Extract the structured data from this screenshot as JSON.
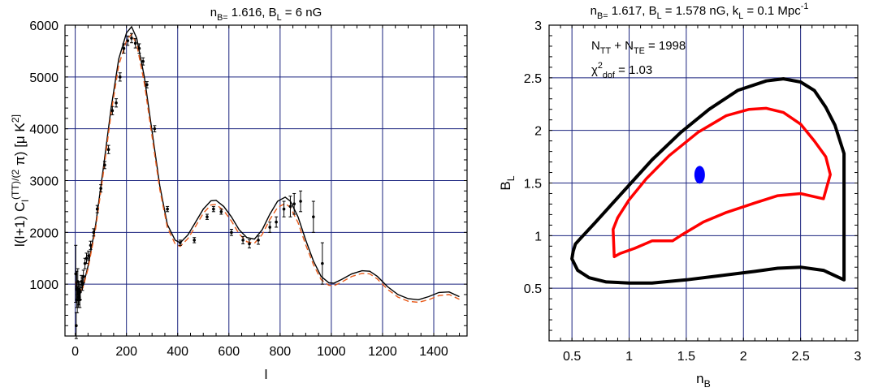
{
  "chart_data": [
    {
      "type": "line",
      "title": "n_B= 1.616,  B_L = 6 nG",
      "xlabel": "l",
      "ylabel": "l(l+1) C_l^(TT)/(2 π) [μ K^2]",
      "xlim": [
        -40,
        1530
      ],
      "ylim": [
        0,
        6000
      ],
      "xticks": [
        0,
        200,
        400,
        600,
        800,
        1000,
        1200,
        1400
      ],
      "yticks": [
        1000,
        2000,
        3000,
        4000,
        5000,
        6000
      ],
      "grid": true,
      "series": [
        {
          "style": "solid",
          "color": "#000000",
          "x": [
            2,
            10,
            20,
            30,
            50,
            80,
            110,
            140,
            170,
            200,
            220,
            240,
            270,
            300,
            330,
            360,
            390,
            410,
            440,
            470,
            500,
            530,
            550,
            580,
            610,
            640,
            670,
            700,
            730,
            760,
            790,
            820,
            840,
            870,
            900,
            930,
            960,
            990,
            1010,
            1040,
            1080,
            1120,
            1150,
            1180,
            1220,
            1260,
            1300,
            1340,
            1380,
            1420,
            1460,
            1500
          ],
          "y": [
            1050,
            800,
            850,
            950,
            1350,
            2150,
            3250,
            4400,
            5350,
            5850,
            5970,
            5750,
            5000,
            3950,
            2900,
            2150,
            1850,
            1800,
            1950,
            2200,
            2450,
            2610,
            2620,
            2500,
            2300,
            2050,
            1900,
            1870,
            2050,
            2350,
            2600,
            2680,
            2600,
            2300,
            1850,
            1450,
            1150,
            1030,
            1020,
            1090,
            1200,
            1260,
            1250,
            1150,
            950,
            800,
            720,
            700,
            760,
            840,
            850,
            760
          ]
        },
        {
          "style": "dashed",
          "color": "#e85a1a",
          "x": [
            2,
            10,
            20,
            30,
            50,
            80,
            110,
            140,
            170,
            200,
            220,
            240,
            270,
            300,
            330,
            360,
            390,
            410,
            440,
            470,
            500,
            530,
            550,
            580,
            610,
            640,
            670,
            700,
            730,
            760,
            790,
            820,
            840,
            870,
            900,
            930,
            960,
            990,
            1010,
            1040,
            1080,
            1120,
            1150,
            1180,
            1220,
            1260,
            1300,
            1340,
            1380,
            1420,
            1460,
            1500
          ],
          "y": [
            1050,
            800,
            850,
            930,
            1300,
            2080,
            3150,
            4300,
            5230,
            5700,
            5830,
            5630,
            4880,
            3850,
            2830,
            2090,
            1780,
            1730,
            1880,
            2120,
            2370,
            2530,
            2540,
            2420,
            2220,
            1970,
            1820,
            1790,
            1960,
            2250,
            2480,
            2560,
            2480,
            2190,
            1760,
            1380,
            1090,
            980,
            970,
            1040,
            1150,
            1210,
            1200,
            1100,
            900,
            750,
            670,
            650,
            700,
            780,
            800,
            710
          ]
        },
        {
          "style": "errorbar",
          "color": "#000000",
          "x": [
            2,
            4,
            6,
            8,
            10,
            12,
            14,
            16,
            18,
            20,
            24,
            28,
            32,
            38,
            44,
            52,
            60,
            72,
            86,
            100,
            115,
            130,
            145,
            160,
            175,
            190,
            205,
            220,
            235,
            250,
            265,
            280,
            310,
            360,
            410,
            465,
            515,
            540,
            570,
            610,
            655,
            680,
            715,
            760,
            785,
            815,
            840,
            855,
            880,
            930,
            965
          ],
          "y": [
            1200,
            200,
            900,
            700,
            1050,
            800,
            750,
            900,
            700,
            850,
            1050,
            1000,
            1150,
            1400,
            1500,
            1550,
            1750,
            2000,
            2450,
            2850,
            3300,
            3600,
            4350,
            4500,
            5000,
            5550,
            5700,
            5750,
            5650,
            5550,
            5300,
            4850,
            4000,
            2450,
            1800,
            1850,
            2300,
            2450,
            2400,
            2000,
            1850,
            1780,
            1850,
            2100,
            2200,
            2450,
            2500,
            2550,
            2600,
            2300,
            1400
          ],
          "err": [
            550,
            250,
            350,
            250,
            250,
            250,
            150,
            150,
            150,
            150,
            120,
            120,
            120,
            100,
            100,
            90,
            80,
            70,
            70,
            70,
            70,
            80,
            80,
            80,
            80,
            90,
            90,
            90,
            90,
            90,
            70,
            60,
            60,
            50,
            50,
            50,
            50,
            50,
            50,
            60,
            70,
            80,
            80,
            100,
            100,
            150,
            200,
            200,
            200,
            300,
            400
          ]
        }
      ]
    },
    {
      "type": "contour",
      "title": "n_B= 1.617,   B_L = 1.578 nG,   k_L = 0.1 Mpc^-1",
      "xlabel": "n_B",
      "ylabel": "B_L",
      "xlim": [
        0.3,
        3.0
      ],
      "ylim": [
        0,
        3
      ],
      "xticks": [
        0.5,
        1,
        1.5,
        2,
        2.5,
        3
      ],
      "xticklabels": [
        "0.5",
        "1",
        "1.5",
        "2",
        "2.5",
        "3"
      ],
      "yticks": [
        0.5,
        1,
        1.5,
        2,
        2.5,
        3
      ],
      "yticklabels": [
        "0.5",
        "1",
        "1.5",
        "2",
        "2.5",
        "3"
      ],
      "grid": true,
      "annotation_lines": [
        "N_TT + N_TE = 1998",
        "χ^2_dof = 1.03"
      ],
      "contours": [
        {
          "color": "#000000",
          "x": [
            0.5,
            0.51,
            0.53,
            0.58,
            0.7,
            0.85,
            1.0,
            1.2,
            1.45,
            1.7,
            1.95,
            2.2,
            2.35,
            2.5,
            2.62,
            2.72,
            2.8,
            2.88,
            2.88,
            2.7,
            2.5,
            2.3,
            2.1,
            1.8,
            1.5,
            1.2,
            1.0,
            0.8,
            0.65,
            0.55,
            0.5
          ],
          "y": [
            0.78,
            0.85,
            0.92,
            0.98,
            1.12,
            1.3,
            1.48,
            1.72,
            1.98,
            2.2,
            2.38,
            2.47,
            2.49,
            2.46,
            2.38,
            2.22,
            2.05,
            1.78,
            0.58,
            0.67,
            0.7,
            0.69,
            0.66,
            0.62,
            0.58,
            0.55,
            0.55,
            0.56,
            0.6,
            0.67,
            0.78
          ]
        },
        {
          "color": "#ff0000",
          "x": [
            0.87,
            0.86,
            0.9,
            1.0,
            1.15,
            1.35,
            1.6,
            1.85,
            2.05,
            2.2,
            2.35,
            2.5,
            2.62,
            2.72,
            2.76,
            2.7,
            2.5,
            2.3,
            2.1,
            1.85,
            1.65,
            1.45,
            1.38,
            1.2,
            1.05,
            0.92,
            0.87
          ],
          "y": [
            0.8,
            1.06,
            1.17,
            1.34,
            1.54,
            1.76,
            1.98,
            2.14,
            2.2,
            2.21,
            2.17,
            2.06,
            1.9,
            1.75,
            1.58,
            1.35,
            1.4,
            1.38,
            1.31,
            1.22,
            1.13,
            1.0,
            0.95,
            0.95,
            0.88,
            0.83,
            0.8
          ]
        }
      ],
      "points": [
        {
          "color": "#0000ff",
          "x": 1.617,
          "y": 1.578
        }
      ]
    }
  ]
}
